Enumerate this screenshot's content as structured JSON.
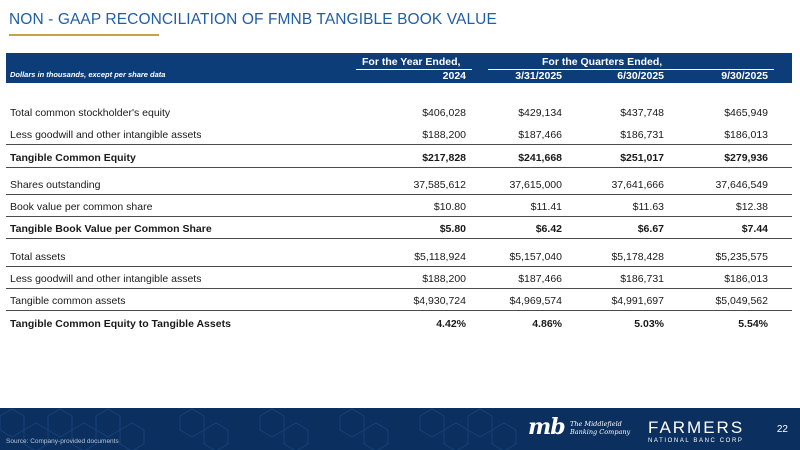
{
  "title": "NON - GAAP RECONCILIATION OF FMNB TANGIBLE BOOK VALUE",
  "header": {
    "year_group": "For the Year Ended,",
    "quarter_group": "For the Quarters Ended,",
    "subtitle": "Dollars in thousands, except per share data",
    "columns": [
      "2024",
      "3/31/2025",
      "6/30/2025",
      "9/30/2025"
    ]
  },
  "rows": [
    {
      "label": "Total common stockholder's equity",
      "values": [
        "$406,028",
        "$429,134",
        "$437,748",
        "$465,949"
      ]
    },
    {
      "label": "Less goodwill and other intangible assets",
      "values": [
        "$188,200",
        "$187,466",
        "$186,731",
        "$186,013"
      ]
    },
    {
      "label": "Tangible Common Equity",
      "values": [
        "$217,828",
        "$241,668",
        "$251,017",
        "$279,936"
      ]
    },
    {
      "label": "Shares outstanding",
      "values": [
        "37,585,612",
        "37,615,000",
        "37,641,666",
        "37,646,549"
      ]
    },
    {
      "label": "Book value per common share",
      "values": [
        "$10.80",
        "$11.41",
        "$11.63",
        "$12.38"
      ]
    },
    {
      "label": "Tangible Book Value per Common Share",
      "values": [
        "$5.80",
        "$6.42",
        "$6.67",
        "$7.44"
      ]
    },
    {
      "label": "Total assets",
      "values": [
        "$5,118,924",
        "$5,157,040",
        "$5,178,428",
        "$5,235,575"
      ]
    },
    {
      "label": "Less goodwill and other intangible assets",
      "values": [
        "$188,200",
        "$187,466",
        "$186,731",
        "$186,013"
      ]
    },
    {
      "label": "Tangible common assets",
      "values": [
        "$4,930,724",
        "$4,969,574",
        "$4,991,697",
        "$5,049,562"
      ]
    },
    {
      "label": "Tangible Common Equity to Tangible Assets",
      "values": [
        "4.42%",
        "4.86%",
        "5.03%",
        "5.54%"
      ]
    }
  ],
  "footer": {
    "source": "Source: Company-provided documents",
    "mb_logo": "mb",
    "mb_text_line1": "The Middlefield",
    "mb_text_line2": "Banking Company",
    "farmers_name": "FARMERS",
    "farmers_sub": "NATIONAL BANC CORP",
    "page_number": "22"
  },
  "colors": {
    "title": "#1f5fa8",
    "accent_rule": "#c8a24a",
    "header_band": "#0d3d78",
    "footer_band": "#0b2f5e"
  }
}
